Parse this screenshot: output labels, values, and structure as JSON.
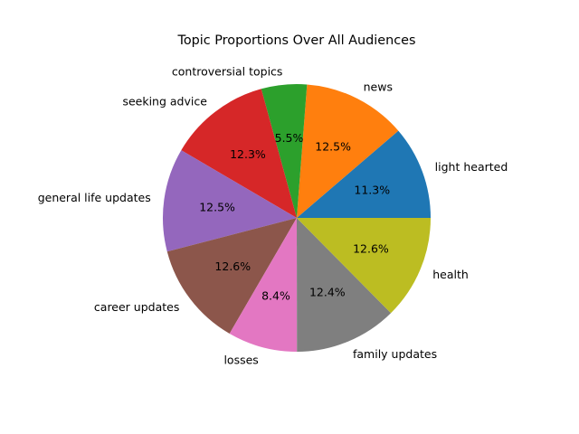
{
  "chart_data": {
    "type": "pie",
    "title": "Topic Proportions Over All Audiences",
    "start_angle_deg": 0,
    "direction": "counterclockwise",
    "slices": [
      {
        "label": "light hearted",
        "value": 11.3,
        "pct_label": "11.3%",
        "color": "#1f77b4"
      },
      {
        "label": "news",
        "value": 12.5,
        "pct_label": "12.5%",
        "color": "#ff7f0e"
      },
      {
        "label": "controversial topics",
        "value": 5.5,
        "pct_label": "5.5%",
        "color": "#2ca02c"
      },
      {
        "label": "seeking advice",
        "value": 12.3,
        "pct_label": "12.3%",
        "color": "#d62728"
      },
      {
        "label": "general life updates",
        "value": 12.5,
        "pct_label": "12.5%",
        "color": "#9467bd"
      },
      {
        "label": "career updates",
        "value": 12.6,
        "pct_label": "12.6%",
        "color": "#8c564b"
      },
      {
        "label": "losses",
        "value": 8.4,
        "pct_label": "8.4%",
        "color": "#e377c2"
      },
      {
        "label": "family updates",
        "value": 12.4,
        "pct_label": "12.4%",
        "color": "#7f7f7f"
      },
      {
        "label": "health",
        "value": 12.6,
        "pct_label": "12.6%",
        "color": "#bcbd22"
      }
    ]
  }
}
